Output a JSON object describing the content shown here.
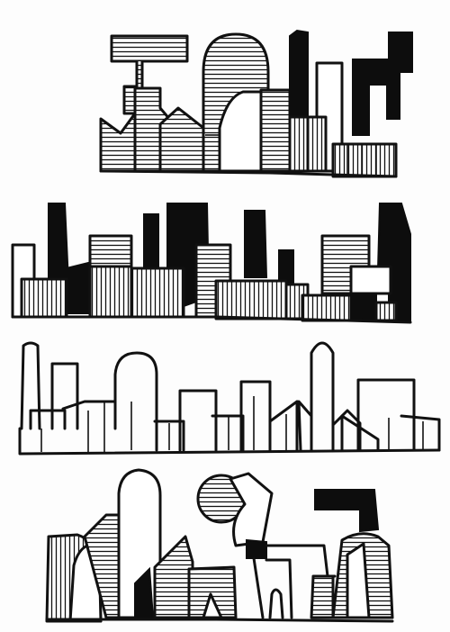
{
  "illustration": {
    "kind": "hand-drawn skyline sketches",
    "rows": [
      {
        "name": "skyline-row-1",
        "style": "hatched with solid black towers"
      },
      {
        "name": "skyline-row-2",
        "style": "hatched blocks with solid black towers"
      },
      {
        "name": "skyline-row-3",
        "style": "outline only"
      },
      {
        "name": "skyline-row-4",
        "style": "mixed hatched, outline and solid shapes"
      }
    ],
    "colors": {
      "ink": "#111111",
      "paper": "#fdfdfd"
    }
  }
}
